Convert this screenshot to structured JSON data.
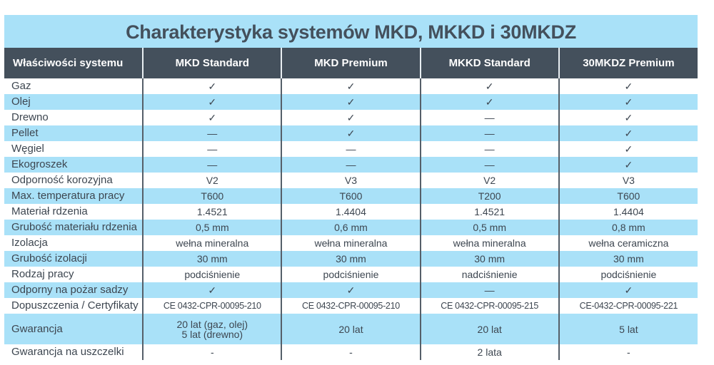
{
  "title": "Charakterystyka systemów MKD, MKKD i 30MKDZ",
  "headers": [
    "Właściwości systemu",
    "MKD Standard",
    "MKD Premium",
    "MKKD Standard",
    "30MKDZ Premium"
  ],
  "colors": {
    "band": "#a9e1f8",
    "header": "#44505c"
  },
  "rows": [
    {
      "label": "Gaz",
      "values": [
        "✓",
        "✓",
        "✓",
        "✓"
      ]
    },
    {
      "label": "Olej",
      "values": [
        "✓",
        "✓",
        "✓",
        "✓"
      ]
    },
    {
      "label": "Drewno",
      "values": [
        "✓",
        "✓",
        "—",
        "✓"
      ]
    },
    {
      "label": "Pellet",
      "values": [
        "—",
        "✓",
        "—",
        "✓"
      ]
    },
    {
      "label": "Węgiel",
      "values": [
        "—",
        "—",
        "—",
        "✓"
      ]
    },
    {
      "label": "Ekogroszek",
      "values": [
        "—",
        "—",
        "—",
        "✓"
      ]
    },
    {
      "label": "Odporność korozyjna",
      "values": [
        "V2",
        "V3",
        "V2",
        "V3"
      ]
    },
    {
      "label": "Max. temperatura pracy",
      "values": [
        "T600",
        "T600",
        "T200",
        "T600"
      ]
    },
    {
      "label": "Materiał rdzenia",
      "values": [
        "1.4521",
        "1.4404",
        "1.4521",
        "1.4404"
      ]
    },
    {
      "label": "Grubość materiału rdzenia",
      "values": [
        "0,5 mm",
        "0,6 mm",
        "0,5 mm",
        "0,8 mm"
      ]
    },
    {
      "label": "Izolacja",
      "values": [
        "wełna mineralna",
        "wełna mineralna",
        "wełna mineralna",
        "wełna ceramiczna"
      ]
    },
    {
      "label": "Grubość izolacji",
      "values": [
        "30 mm",
        "30 mm",
        "30 mm",
        "30 mm"
      ]
    },
    {
      "label": "Rodzaj pracy",
      "values": [
        "podciśnienie",
        "podciśnienie",
        "nadciśnienie",
        "podciśnienie"
      ]
    },
    {
      "label": "Odporny na pożar sadzy",
      "values": [
        "✓",
        "✓",
        "—",
        "✓"
      ]
    },
    {
      "label": "Dopuszczenia / Certyfikaty",
      "values": [
        "CE 0432-CPR-00095-210",
        "CE 0432-CPR-00095-210",
        "CE 0432-CPR-00095-215",
        "CE-0432-CPR-00095-221"
      ]
    },
    {
      "label": "Gwarancja",
      "values": [
        "20 lat (gaz, olej)\n5 lat (drewno)",
        "20 lat",
        "20 lat",
        "5 lat"
      ]
    },
    {
      "label": "Gwarancja na uszczelki",
      "values": [
        "-",
        "-",
        "2 lata",
        "-"
      ]
    }
  ]
}
